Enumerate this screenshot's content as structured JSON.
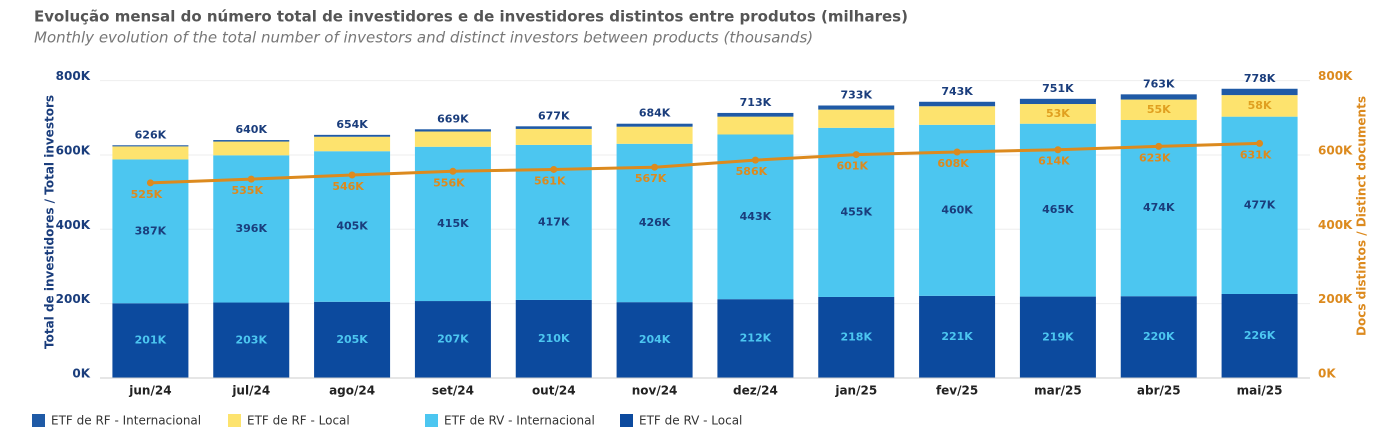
{
  "chart_data": {
    "type": "stacked-bar-line",
    "title": "Evolução mensal do número total de investidores e de investidores distintos entre produtos (milhares)",
    "subtitle": "Monthly evolution of the total number of investors and distinct investors between products (thousands)",
    "y_label": "Total de investidores / Total investors",
    "y2_label": "Docs distintos / Distinct documents",
    "categories": [
      "jun/24",
      "jul/24",
      "ago/24",
      "set/24",
      "out/24",
      "nov/24",
      "dez/24",
      "jan/25",
      "fev/25",
      "mar/25",
      "abr/25",
      "mai/25"
    ],
    "series": [
      {
        "name": "ETF de RF - Internacional",
        "color": "#1f5aa6",
        "values": [
          3,
          4,
          5,
          6,
          7,
          8,
          10,
          11,
          12,
          14,
          14,
          17
        ]
      },
      {
        "name": "ETF de RF - Local",
        "color": "#fde36e",
        "values": [
          35,
          37,
          39,
          41,
          43,
          46,
          48,
          49,
          50,
          53,
          55,
          58
        ],
        "value_labels": [
          null,
          null,
          null,
          null,
          null,
          null,
          null,
          null,
          null,
          "53K",
          "55K",
          "58K"
        ]
      },
      {
        "name": "ETF de RV - Internacional",
        "color": "#4cc6f0",
        "values": [
          387,
          396,
          405,
          415,
          417,
          426,
          443,
          455,
          460,
          465,
          474,
          477
        ],
        "value_labels": [
          "387K",
          "396K",
          "405K",
          "415K",
          "417K",
          "426K",
          "443K",
          "455K",
          "460K",
          "465K",
          "474K",
          "477K"
        ]
      },
      {
        "name": "ETF de RV - Local",
        "color": "#0c4a9e",
        "values": [
          201,
          203,
          205,
          207,
          210,
          204,
          212,
          218,
          221,
          219,
          220,
          226
        ],
        "value_labels": [
          "201K",
          "203K",
          "205K",
          "207K",
          "210K",
          "204K",
          "212K",
          "218K",
          "221K",
          "219K",
          "220K",
          "226K"
        ]
      },
      {
        "type": "line",
        "axis": "y2",
        "color": "#dc8a1e",
        "values": [
          525,
          535,
          546,
          556,
          561,
          567,
          586,
          601,
          608,
          614,
          623,
          631
        ],
        "value_labels": [
          "525K",
          "535K",
          "546K",
          "556K",
          "561K",
          "567K",
          "586K",
          "601K",
          "608K",
          "614K",
          "623K",
          "631K"
        ]
      }
    ],
    "totals": {
      "values": [
        626,
        640,
        654,
        669,
        677,
        684,
        713,
        733,
        743,
        751,
        763,
        778
      ],
      "value_labels": [
        "626K",
        "640K",
        "654K",
        "669K",
        "677K",
        "684K",
        "713K",
        "733K",
        "743K",
        "751K",
        "763K",
        "778K"
      ]
    },
    "ylim": [
      0,
      850
    ],
    "yticks": [
      {
        "value": 0,
        "label": "0K"
      },
      {
        "value": 200,
        "label": "200K"
      },
      {
        "value": 400,
        "label": "400K"
      },
      {
        "value": 600,
        "label": "600K"
      },
      {
        "value": 800,
        "label": "800K"
      }
    ],
    "y2lim": [
      0,
      850
    ],
    "y2ticks": [
      {
        "value": 0,
        "label": "0K"
      },
      {
        "value": 200,
        "label": "200K"
      },
      {
        "value": 400,
        "label": "400K"
      },
      {
        "value": 600,
        "label": "600K"
      },
      {
        "value": 800,
        "label": "800K"
      }
    ],
    "grid": true
  }
}
